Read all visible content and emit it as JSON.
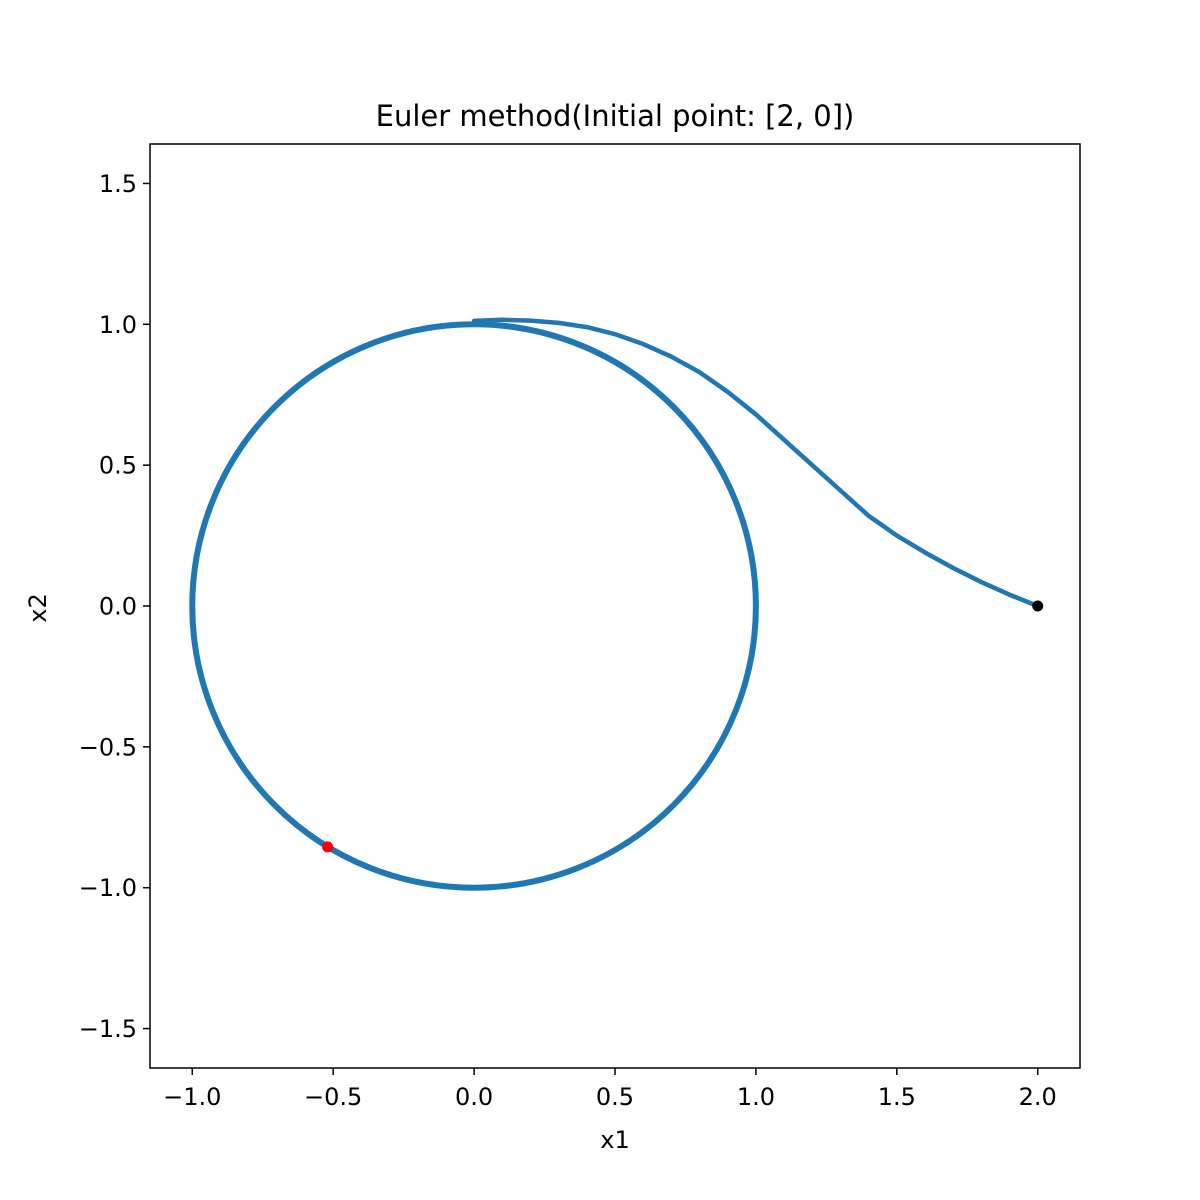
{
  "chart_data": {
    "type": "line",
    "title": "Euler method(Initial point: [2, 0])",
    "xlabel": "x1",
    "ylabel": "x2",
    "xlim": [
      -1.15,
      2.15
    ],
    "ylim": [
      -1.64,
      1.64
    ],
    "xticks": [
      -1.0,
      -0.5,
      0.0,
      0.5,
      1.0,
      1.5,
      2.0
    ],
    "yticks": [
      -1.5,
      -1.0,
      -0.5,
      0.0,
      0.5,
      1.0,
      1.5
    ],
    "xtick_labels": [
      "−1.0",
      "−0.5",
      "0.0",
      "0.5",
      "1.0",
      "1.5",
      "2.0"
    ],
    "ytick_labels": [
      "−1.5",
      "−1.0",
      "−0.5",
      "0.0",
      "0.5",
      "1.0",
      "1.5"
    ],
    "grid": false,
    "series": [
      {
        "color": "#1f77b4",
        "x": [
          2.0,
          1.9,
          1.8,
          1.7,
          1.6,
          1.5,
          1.4,
          1.3,
          1.2,
          1.1,
          1.0,
          0.9,
          0.8,
          0.7,
          0.6,
          0.5,
          0.4,
          0.3,
          0.2,
          0.1,
          0.0
        ],
        "y": [
          0.0,
          0.04,
          0.085,
          0.135,
          0.19,
          0.25,
          0.32,
          0.41,
          0.5,
          0.59,
          0.68,
          0.76,
          0.83,
          0.885,
          0.93,
          0.965,
          0.99,
          1.005,
          1.013,
          1.016,
          1.012
        ]
      },
      {
        "color": "#1f77b4",
        "shape": "circle",
        "center": [
          0.0,
          0.0
        ],
        "radius": 1.0
      }
    ],
    "points": [
      {
        "label": "start",
        "x": 2.0,
        "y": 0.0,
        "color": "#000000"
      },
      {
        "label": "end",
        "x": -0.52,
        "y": -0.855,
        "color": "#ff0000"
      }
    ]
  }
}
